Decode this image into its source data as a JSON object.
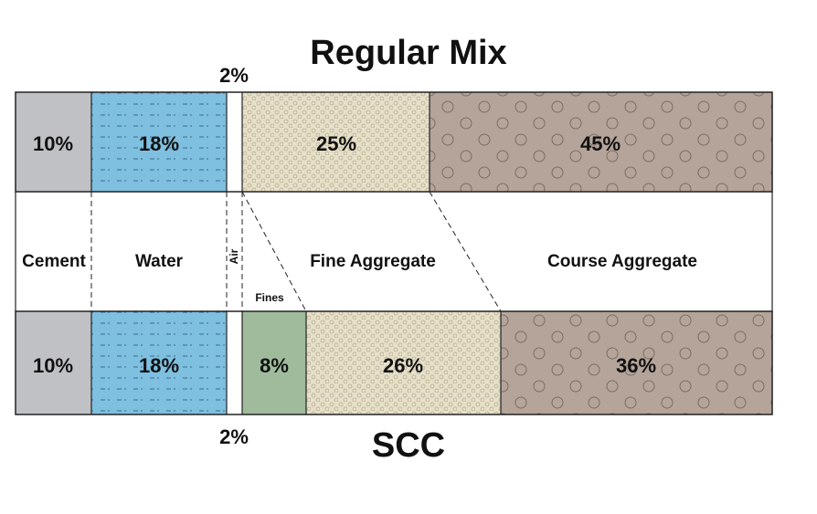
{
  "titles": {
    "top": "Regular Mix",
    "bottom": "SCC"
  },
  "air_labels": {
    "top": "2%",
    "bottom": "2%"
  },
  "regular_mix": {
    "cement": "10%",
    "water": "18%",
    "fine_aggregate": "25%",
    "course_aggregate": "45%"
  },
  "scc": {
    "cement": "10%",
    "water": "18%",
    "fines": "8%",
    "fine_aggregate": "26%",
    "course_aggregate": "36%"
  },
  "components": {
    "cement": "Cement",
    "water": "Water",
    "air": "Air",
    "fines": "Fines",
    "fine_aggregate": "Fine Aggregate",
    "course_aggregate": "Course Aggregate"
  },
  "colors": {
    "cement": "#c0c1c5",
    "water": "#7fbfdf",
    "fines": "#9fbb9c",
    "fine_aggregate": "#e6e0c9",
    "course_aggregate": "#b4a49a"
  }
}
